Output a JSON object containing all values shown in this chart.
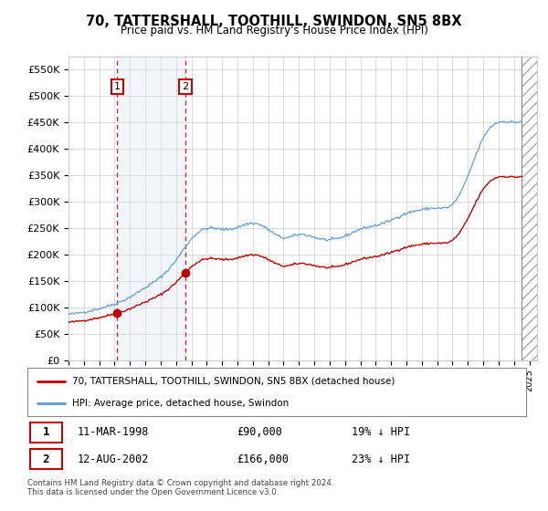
{
  "title": "70, TATTERSHALL, TOOTHILL, SWINDON, SN5 8BX",
  "subtitle": "Price paid vs. HM Land Registry's House Price Index (HPI)",
  "sale1_date": "11-MAR-1998",
  "sale1_price": 90000,
  "sale1_year": 1998.18,
  "sale2_date": "12-AUG-2002",
  "sale2_price": 166000,
  "sale2_year": 2002.62,
  "sale1_hpi_pct": "19% ↓ HPI",
  "sale2_hpi_pct": "23% ↓ HPI",
  "legend_line1": "70, TATTERSHALL, TOOTHILL, SWINDON, SN5 8BX (detached house)",
  "legend_line2": "HPI: Average price, detached house, Swindon",
  "footer1": "Contains HM Land Registry data © Crown copyright and database right 2024.",
  "footer2": "This data is licensed under the Open Government Licence v3.0.",
  "hpi_color": "#5b9bd5",
  "price_color": "#c00000",
  "highlight_color": "#dce6f1",
  "ylim": [
    0,
    575000
  ],
  "yticks": [
    0,
    50000,
    100000,
    150000,
    200000,
    250000,
    300000,
    350000,
    400000,
    450000,
    500000,
    550000
  ],
  "xlim_start": 1995.0,
  "xlim_end": 2025.5,
  "hatch_start": 2024.5
}
